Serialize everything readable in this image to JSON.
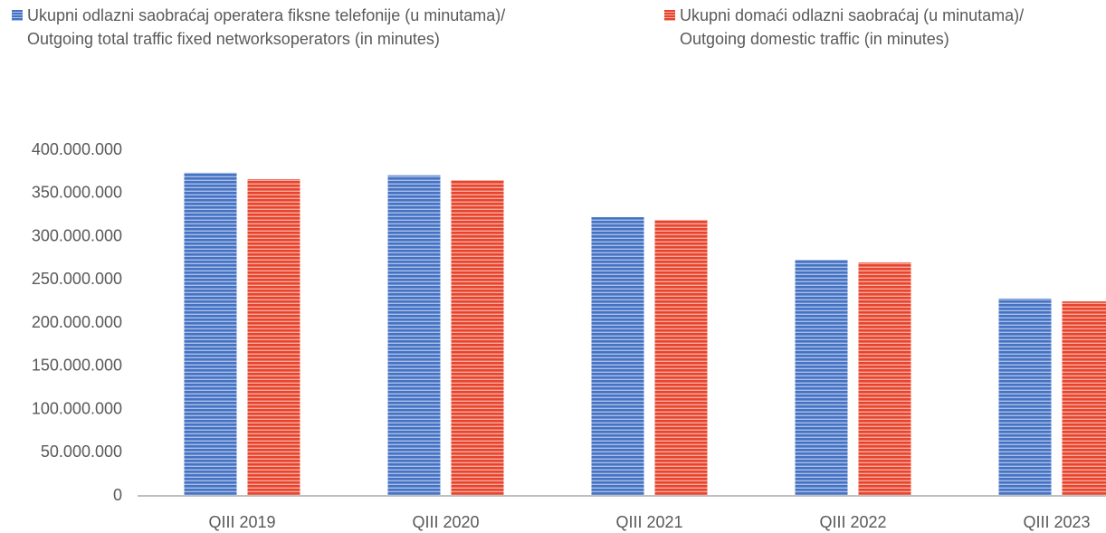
{
  "chart_data": {
    "type": "bar",
    "categories": [
      "QIII 2019",
      "QIII 2020",
      "QIII 2021",
      "QIII 2022",
      "QIII 2023"
    ],
    "series": [
      {
        "name": "Ukupni odlazni saobraćaj operatera fiksne telefonije (u minutama)/\nOutgoing total traffic fixed networksoperators (in minutes)",
        "color": "#4472c4",
        "values": [
          374000000,
          371000000,
          322500000,
          273300000,
          228300000
        ]
      },
      {
        "name": "Ukupni domaći odlazni saobraćaj (u minutama)/\nOutgoing domestic traffic  (in minutes)",
        "color": "#e8442c",
        "values": [
          366500000,
          365400000,
          319400000,
          270200000,
          225100000
        ]
      }
    ],
    "ylim": [
      0,
      400000000
    ],
    "yticks": [
      0,
      {
        "value": 50000000,
        "label": "50.000.000"
      },
      {
        "value": 100000000,
        "label": "100.000.000"
      },
      {
        "value": 150000000,
        "label": "150.000.000"
      },
      {
        "value": 200000000,
        "label": "200.000.000"
      },
      {
        "value": 250000000,
        "label": "250.000.000"
      },
      {
        "value": 300000000,
        "label": "300.000.000"
      },
      {
        "value": 350000000,
        "label": "350.000.000"
      },
      {
        "value": 400000000,
        "label": "400.000.000"
      }
    ],
    "grid": false
  }
}
